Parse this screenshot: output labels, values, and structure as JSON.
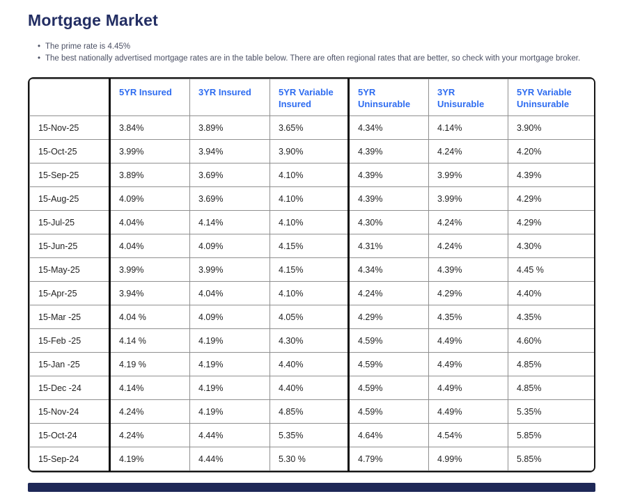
{
  "page": {
    "title": "Mortgage Market",
    "bullets": [
      "The prime rate is 4.45%",
      "The best nationally advertised mortgage rates are in the table below. There are often regional rates that are better, so check with your mortgage broker."
    ]
  },
  "colors": {
    "title_navy": "#232e63",
    "header_blue": "#2e6cf0",
    "grid_gray": "#8f8f8f",
    "outer_border": "#161616",
    "scrollbar_navy": "#1e2857"
  },
  "table": {
    "headers": [
      "",
      "5YR Insured",
      "3YR Insured",
      "5YR Variable Insured",
      "5YR Uninsurable",
      "3YR Unisurable",
      "5YR Variable Uninsurable"
    ],
    "rows": [
      {
        "date": "15-Nov-25",
        "values": [
          "3.84%",
          "3.89%",
          "3.65%",
          "4.34%",
          "4.14%",
          "3.90%"
        ]
      },
      {
        "date": "15-Oct-25",
        "values": [
          "3.99%",
          "3.94%",
          "3.90%",
          "4.39%",
          "4.24%",
          "4.20%"
        ]
      },
      {
        "date": "15-Sep-25",
        "values": [
          "3.89%",
          "3.69%",
          "4.10%",
          "4.39%",
          "3.99%",
          "4.39%"
        ]
      },
      {
        "date": "15-Aug-25",
        "values": [
          "4.09%",
          "3.69%",
          "4.10%",
          "4.39%",
          "3.99%",
          "4.29%"
        ]
      },
      {
        "date": "15-Jul-25",
        "values": [
          "4.04%",
          "4.14%",
          "4.10%",
          "4.30%",
          "4.24%",
          "4.29%"
        ]
      },
      {
        "date": "15-Jun-25",
        "values": [
          "4.04%",
          "4.09%",
          "4.15%",
          "4.31%",
          "4.24%",
          "4.30%"
        ]
      },
      {
        "date": "15-May-25",
        "values": [
          "3.99%",
          "3.99%",
          "4.15%",
          "4.34%",
          "4.39%",
          "4.45 %"
        ]
      },
      {
        "date": "15-Apr-25",
        "values": [
          "3.94%",
          "4.04%",
          "4.10%",
          "4.24%",
          "4.29%",
          "4.40%"
        ]
      },
      {
        "date": "15-Mar -25",
        "values": [
          "4.04 %",
          "4.09%",
          "4.05%",
          "4.29%",
          "4.35%",
          "4.35%"
        ]
      },
      {
        "date": "15-Feb -25",
        "values": [
          "4.14 %",
          "4.19%",
          "4.30%",
          "4.59%",
          "4.49%",
          "4.60%"
        ]
      },
      {
        "date": "15-Jan -25",
        "values": [
          "4.19 %",
          "4.19%",
          "4.40%",
          "4.59%",
          "4.49%",
          "4.85%"
        ]
      },
      {
        "date": "15-Dec -24",
        "values": [
          "4.14%",
          "4.19%",
          "4.40%",
          "4.59%",
          "4.49%",
          "4.85%"
        ]
      },
      {
        "date": "15-Nov-24",
        "values": [
          "4.24%",
          "4.19%",
          "4.85%",
          "4.59%",
          "4.49%",
          "5.35%"
        ]
      },
      {
        "date": "15-Oct-24",
        "values": [
          "4.24%",
          "4.44%",
          "5.35%",
          "4.64%",
          "4.54%",
          "5.85%"
        ]
      },
      {
        "date": "15-Sep-24",
        "values": [
          "4.19%",
          "4.44%",
          "5.30 %",
          "4.79%",
          "4.99%",
          "5.85%"
        ]
      }
    ]
  }
}
